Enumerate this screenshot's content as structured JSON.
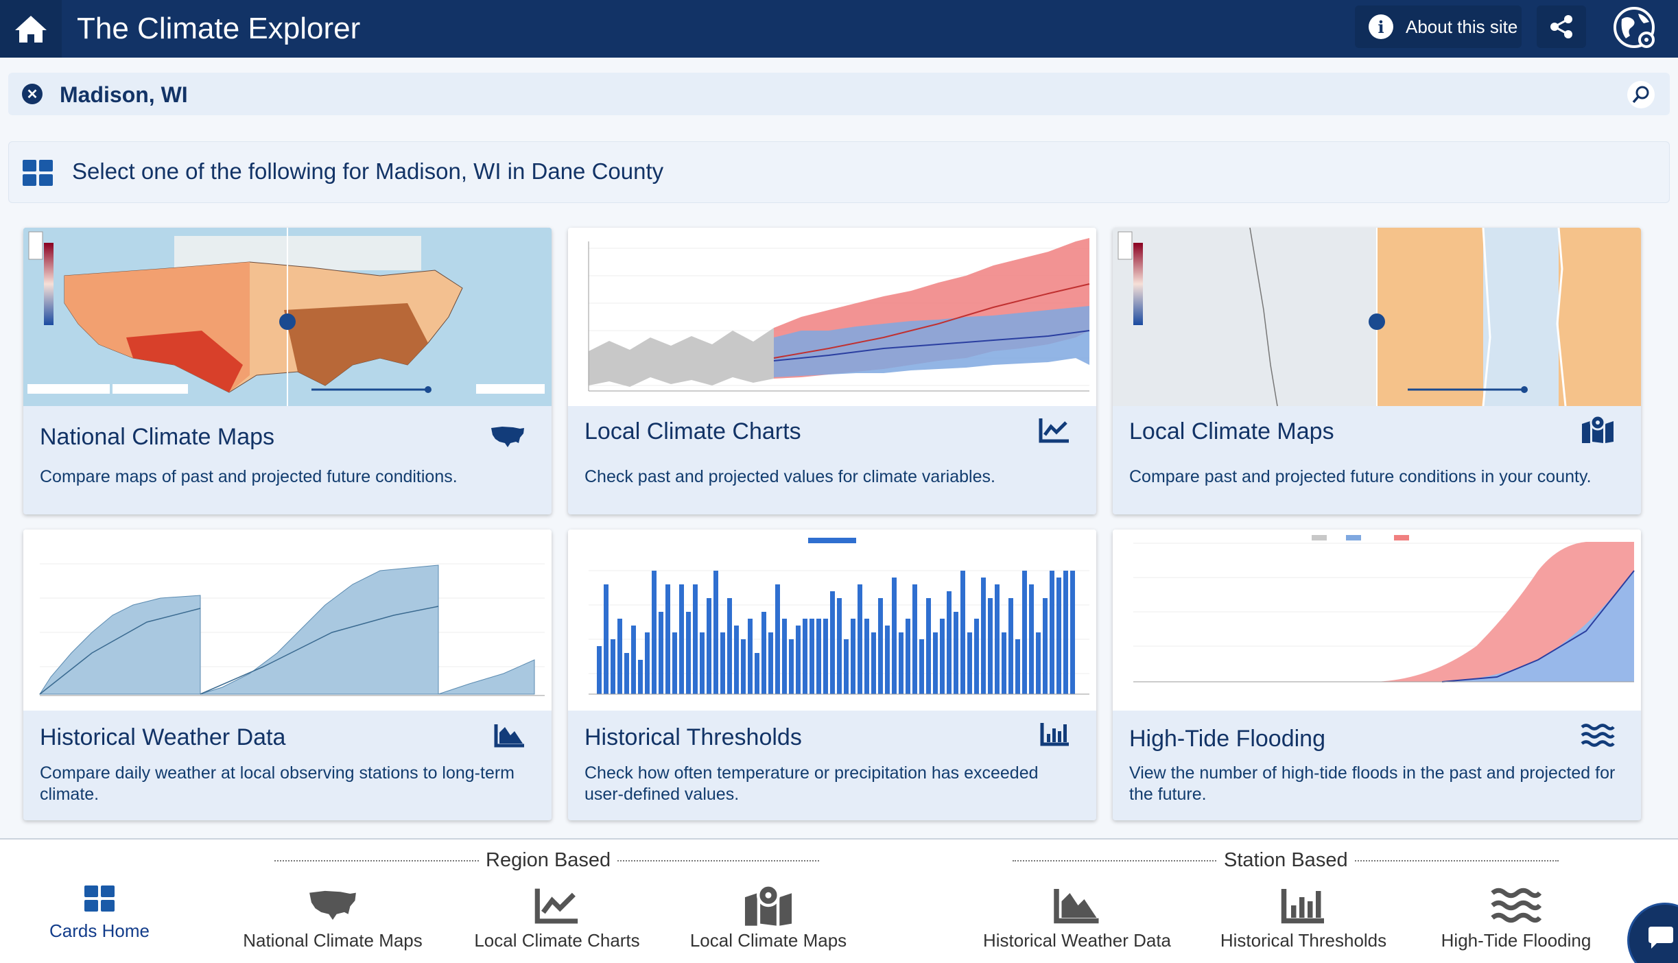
{
  "header": {
    "title": "The Climate Explorer",
    "about_label": "About this site",
    "info_glyph": "i"
  },
  "location": {
    "value": "Madison, WI",
    "clear_glyph": "✕"
  },
  "select_prompt": "Select one of the following for Madison, WI in Dane County",
  "cards": [
    {
      "title": "National Climate Maps",
      "desc": "Compare maps of past and projected future conditions.",
      "icon": "usa-map-icon"
    },
    {
      "title": "Local Climate Charts",
      "desc": "Check past and projected values for climate variables.",
      "icon": "line-chart-icon"
    },
    {
      "title": "Local Climate Maps",
      "desc": "Compare past and projected future conditions in your county.",
      "icon": "map-marker-icon"
    },
    {
      "title": "Historical Weather Data",
      "desc": "Compare daily weather at local observing stations to long-term climate.",
      "icon": "area-chart-icon"
    },
    {
      "title": "Historical Thresholds",
      "desc": "Check how often temperature or precipitation has exceeded user-defined values.",
      "icon": "bar-chart-icon"
    },
    {
      "title": "High-Tide Flooding",
      "desc": "View the number of high-tide floods in the past and projected for the future.",
      "icon": "waves-icon"
    }
  ],
  "bottom_nav": {
    "group_region": "Region Based",
    "group_station": "Station Based",
    "items": [
      {
        "label": "Cards Home",
        "icon": "grid-icon",
        "active": true
      },
      {
        "label": "National Climate Maps",
        "icon": "usa-map-icon"
      },
      {
        "label": "Local Climate Charts",
        "icon": "line-chart-icon"
      },
      {
        "label": "Local Climate Maps",
        "icon": "map-marker-icon"
      },
      {
        "label": "Historical Weather Data",
        "icon": "area-chart-icon"
      },
      {
        "label": "Historical Thresholds",
        "icon": "bar-chart-icon"
      },
      {
        "label": "High-Tide Flooding",
        "icon": "waves-icon"
      }
    ]
  },
  "colors": {
    "header_bg": "#123366",
    "accent": "#1a5aa8",
    "card_bg": "#e5edf8",
    "hist_gray": "#c8c8c8",
    "high_emissions": "#f08080",
    "lower_emissions": "#7fa8e0",
    "bar_blue": "#2f6fd0"
  }
}
